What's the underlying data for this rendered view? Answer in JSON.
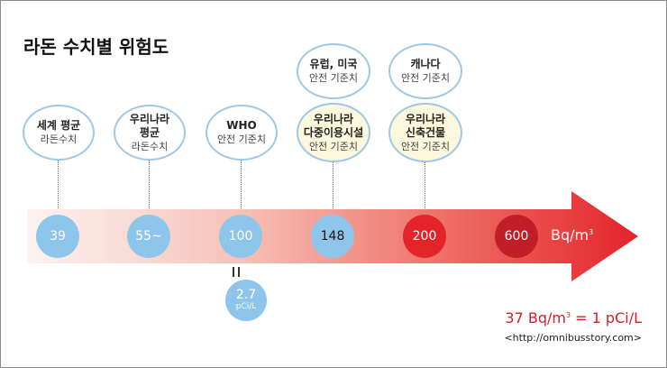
{
  "title": "라돈 수치별 위험도",
  "colors": {
    "bubble_border": "#9fc8e6",
    "blue": "#8ec5ea",
    "red": "#e3242b",
    "dark_red": "#c01f2a",
    "arrow_start": "#fbe9e6",
    "arrow_end": "#e3242b"
  },
  "bubbles": {
    "world": {
      "line1": "세계 평균",
      "line2": "라돈수치"
    },
    "korea": {
      "line1": "우리나라",
      "line1b": "평균",
      "line2": "라돈수치"
    },
    "who": {
      "line1": "WHO",
      "line2": "안전 기준치"
    },
    "us_eu": {
      "line1": "유럽, 미국",
      "line2": "안전 기준치"
    },
    "multi": {
      "line1": "우리나라",
      "line1b": "다중이용시설",
      "line2": "안전 기준치"
    },
    "canada": {
      "line1": "캐나다",
      "line2": "안전 기준치"
    },
    "new_building": {
      "line1": "우리나라",
      "line1b": "신축건물",
      "line2": "안전 기준치"
    }
  },
  "values": {
    "v39": "39",
    "v55": "55~",
    "v100": "100",
    "v148": "148",
    "v200": "200",
    "v600": "600"
  },
  "unit": {
    "base": "Bq/m",
    "sup": "3"
  },
  "conversion": {
    "value": "2.7",
    "unit": "pCi/L"
  },
  "ratio": {
    "left": "37 Bq/m",
    "sup": "3",
    "right": " = 1 pCi/L"
  },
  "source": "<http://omnibusstory.com>"
}
